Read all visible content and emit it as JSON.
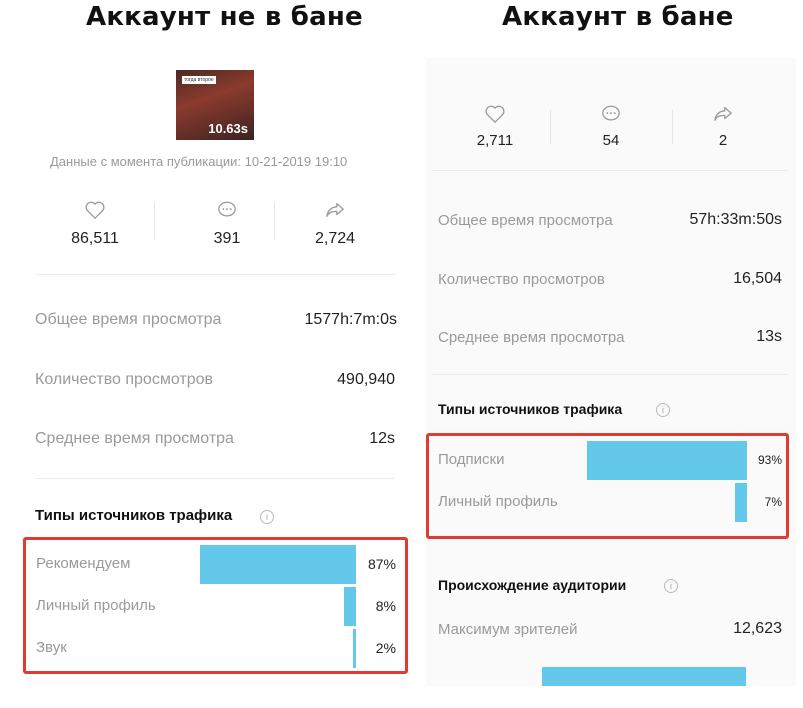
{
  "headlines": {
    "left": "Аккаунт не в бане",
    "right": "Аккаунт в бане"
  },
  "left": {
    "thumbnail": {
      "tag": "тогда второе",
      "duration": "10.63s"
    },
    "since": "Данные с момента публикации: 10-21-2019 19:10",
    "stats": {
      "likes": "86,511",
      "comments": "391",
      "shares": "2,724"
    },
    "rows": [
      {
        "label": "Общее время просмотра",
        "value": "1577h:7m:0s"
      },
      {
        "label": "Количество просмотров",
        "value": "490,940"
      },
      {
        "label": "Среднее время просмотра",
        "value": "12s"
      }
    ],
    "traffic_title": "Типы источников трафика",
    "traffic": [
      {
        "label": "Рекомендуем",
        "pct": "87%",
        "fraction": 0.87
      },
      {
        "label": "Личный профиль",
        "pct": "8%",
        "fraction": 0.08
      },
      {
        "label": "Звук",
        "pct": "2%",
        "fraction": 0.02
      }
    ]
  },
  "right": {
    "stats": {
      "likes": "2,711",
      "comments": "54",
      "shares": "2"
    },
    "rows": [
      {
        "label": "Общее время просмотра",
        "value": "57h:33m:50s"
      },
      {
        "label": "Количество просмотров",
        "value": "16,504"
      },
      {
        "label": "Среднее время просмотра",
        "value": "13s"
      }
    ],
    "traffic_title": "Типы источников трафика",
    "traffic": [
      {
        "label": "Подписки",
        "pct": "93%",
        "fraction": 0.93
      },
      {
        "label": "Личный профиль",
        "pct": "7%",
        "fraction": 0.07
      }
    ],
    "audience_title": "Происхождение аудитории",
    "max_viewers_label": "Максимум зрителей",
    "max_viewers_value": "12,623"
  },
  "colors": {
    "bar": "#63c8ea",
    "highlight": "#e33a2f"
  },
  "icons": {
    "likes": "heart-icon",
    "comments": "comment-icon",
    "shares": "share-icon",
    "info": "info-icon"
  }
}
